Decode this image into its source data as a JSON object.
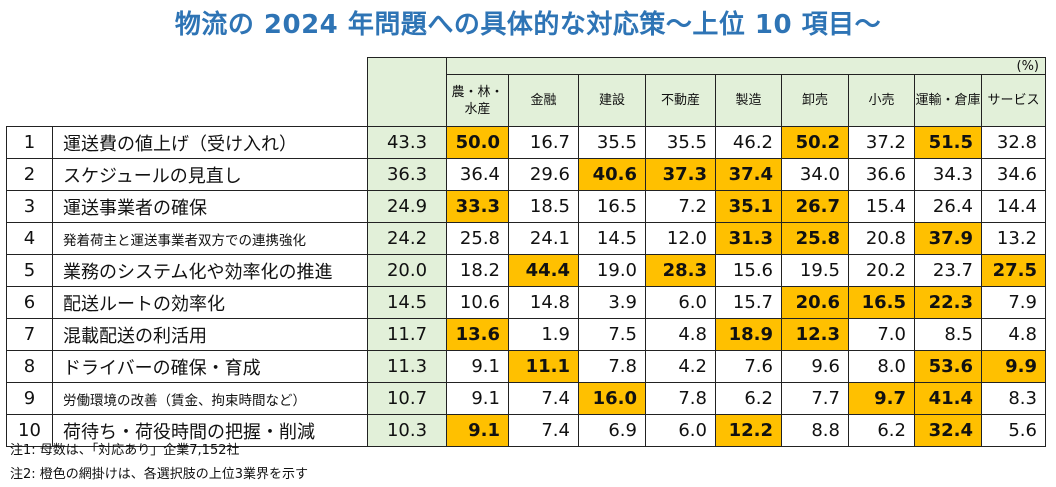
{
  "title": "物流の 2024 年問題への具体的な対応策～上位 10 項目～",
  "unit": "(%)",
  "chart_data": {
    "type": "table",
    "title": "物流の 2024 年問題への具体的な対応策～上位 10 項目～",
    "unit": "(%)",
    "highlight_color": "#ffc000",
    "header_color": "#e2f0d9",
    "columns": [
      "農・林・水産",
      "金融",
      "建設",
      "不動産",
      "製造",
      "卸売",
      "小売",
      "運輸・倉庫",
      "サービス"
    ],
    "rows": [
      {
        "rank": "1",
        "item": "運送費の値上げ（受け入れ）",
        "total": "43.3",
        "values": [
          "50.0",
          "16.7",
          "35.5",
          "35.5",
          "46.2",
          "50.2",
          "37.2",
          "51.5",
          "32.8"
        ],
        "highlight": [
          1,
          0,
          0,
          0,
          0,
          1,
          0,
          1,
          0
        ]
      },
      {
        "rank": "2",
        "item": "スケジュールの見直し",
        "total": "36.3",
        "values": [
          "36.4",
          "29.6",
          "40.6",
          "37.3",
          "37.4",
          "34.0",
          "36.6",
          "34.3",
          "34.6"
        ],
        "highlight": [
          0,
          0,
          1,
          1,
          1,
          0,
          0,
          0,
          0
        ]
      },
      {
        "rank": "3",
        "item": "運送事業者の確保",
        "total": "24.9",
        "values": [
          "33.3",
          "18.5",
          "16.5",
          "7.2",
          "35.1",
          "26.7",
          "15.4",
          "26.4",
          "14.4"
        ],
        "highlight": [
          1,
          0,
          0,
          0,
          1,
          1,
          0,
          0,
          0
        ]
      },
      {
        "rank": "4",
        "item": "発着荷主と運送事業者双方での連携強化",
        "total": "24.2",
        "values": [
          "25.8",
          "24.1",
          "14.5",
          "12.0",
          "31.3",
          "25.8",
          "20.8",
          "37.9",
          "13.2"
        ],
        "highlight": [
          0,
          0,
          0,
          0,
          1,
          1,
          0,
          1,
          0
        ]
      },
      {
        "rank": "5",
        "item": "業務のシステム化や効率化の推進",
        "total": "20.0",
        "values": [
          "18.2",
          "44.4",
          "19.0",
          "28.3",
          "15.6",
          "19.5",
          "20.2",
          "23.7",
          "27.5"
        ],
        "highlight": [
          0,
          1,
          0,
          1,
          0,
          0,
          0,
          0,
          1
        ]
      },
      {
        "rank": "6",
        "item": "配送ルートの効率化",
        "total": "14.5",
        "values": [
          "10.6",
          "14.8",
          "3.9",
          "6.0",
          "15.7",
          "20.6",
          "16.5",
          "22.3",
          "7.9"
        ],
        "highlight": [
          0,
          0,
          0,
          0,
          0,
          1,
          1,
          1,
          0
        ]
      },
      {
        "rank": "7",
        "item": "混載配送の利活用",
        "total": "11.7",
        "values": [
          "13.6",
          "1.9",
          "7.5",
          "4.8",
          "18.9",
          "12.3",
          "7.0",
          "8.5",
          "4.8"
        ],
        "highlight": [
          1,
          0,
          0,
          0,
          1,
          1,
          0,
          0,
          0
        ]
      },
      {
        "rank": "8",
        "item": "ドライバーの確保・育成",
        "total": "11.3",
        "values": [
          "9.1",
          "11.1",
          "7.8",
          "4.2",
          "7.6",
          "9.6",
          "8.0",
          "53.6",
          "9.9"
        ],
        "highlight": [
          0,
          1,
          0,
          0,
          0,
          0,
          0,
          1,
          1
        ]
      },
      {
        "rank": "9",
        "item": "労働環境の改善（賃金、拘束時間など）",
        "total": "10.7",
        "values": [
          "9.1",
          "7.4",
          "16.0",
          "7.8",
          "6.2",
          "7.7",
          "9.7",
          "41.4",
          "8.3"
        ],
        "highlight": [
          0,
          0,
          1,
          0,
          0,
          0,
          1,
          1,
          0
        ]
      },
      {
        "rank": "10",
        "item": "荷待ち・荷役時間の把握・削減",
        "total": "10.3",
        "values": [
          "9.1",
          "7.4",
          "6.9",
          "6.0",
          "12.2",
          "8.8",
          "6.2",
          "32.4",
          "5.6"
        ],
        "highlight": [
          1,
          0,
          0,
          0,
          1,
          0,
          0,
          1,
          0
        ]
      }
    ]
  },
  "notes": [
    "注1: 母数は、「対応あり」企業7,152社",
    "注2: 橙色の網掛けは、各選択肢の上位3業界を示す"
  ]
}
